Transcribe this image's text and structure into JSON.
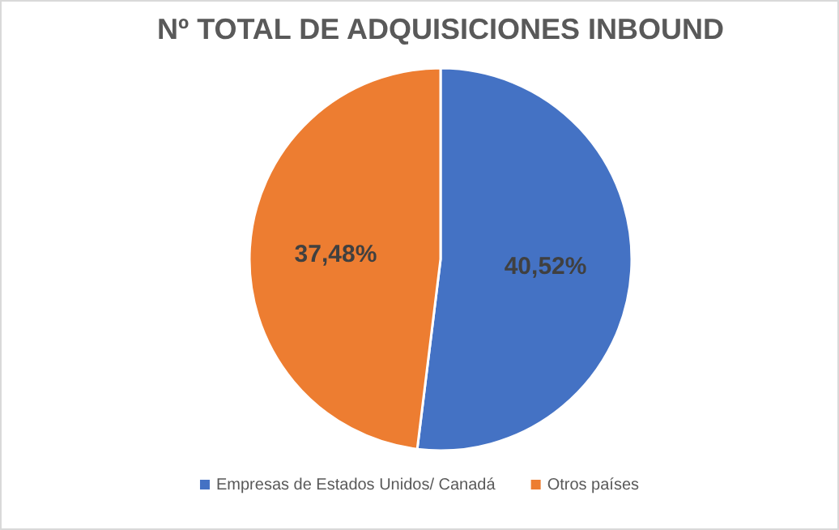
{
  "chart_data": {
    "type": "pie",
    "title": "Nº TOTAL DE ADQUISICIONES INBOUND",
    "categories": [
      "Empresas de Estados Unidos/ Canadá",
      "Otros países"
    ],
    "values": [
      40.52,
      37.48
    ],
    "colors": [
      "#4472c4",
      "#ed7d31"
    ],
    "value_labels": [
      "40,52%",
      "37,48%"
    ],
    "legend": "bottom"
  }
}
